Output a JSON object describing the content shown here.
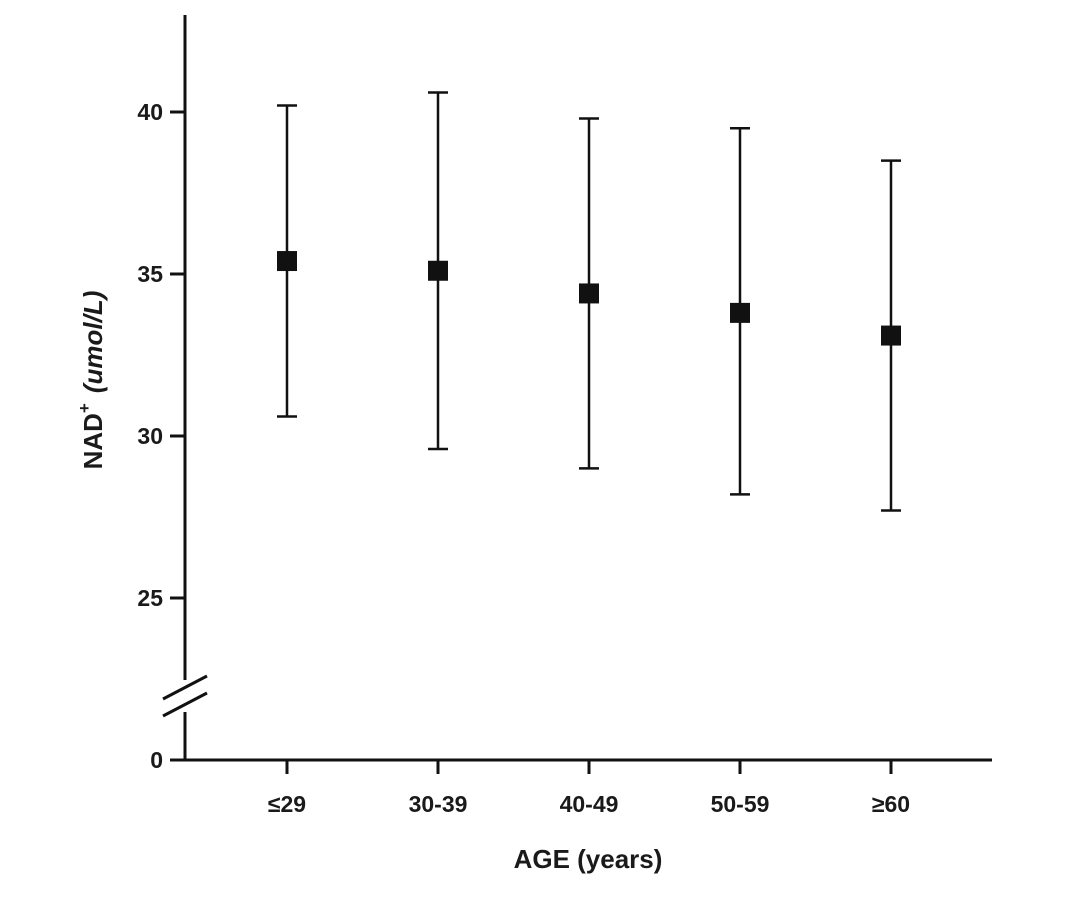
{
  "chart_data": {
    "type": "scatter",
    "title": "",
    "xlabel": "AGE (years)",
    "ylabel_main": "NAD",
    "ylabel_sup": "+",
    "ylabel_unit": "(umol/L)",
    "categories": [
      "≤29",
      "30-39",
      "40-49",
      "50-59",
      "≥60"
    ],
    "y_ticks": [
      {
        "value": 0,
        "label": "0"
      },
      {
        "value": 25,
        "label": "25"
      },
      {
        "value": 30,
        "label": "30"
      },
      {
        "value": 35,
        "label": "35"
      },
      {
        "value": 40,
        "label": "40"
      }
    ],
    "y_axis_break": true,
    "ylim": [
      22,
      43
    ],
    "marker": "square",
    "series": [
      {
        "values": [
          35.4,
          35.1,
          34.4,
          33.8,
          33.1
        ],
        "error_lower": [
          30.6,
          29.6,
          29.0,
          28.2,
          27.7
        ],
        "error_upper": [
          40.2,
          40.6,
          39.8,
          39.5,
          38.5
        ]
      }
    ],
    "grid": false,
    "colors": {
      "marker": "#111111",
      "axis": "#111111",
      "text": "#1a1a1a"
    }
  }
}
